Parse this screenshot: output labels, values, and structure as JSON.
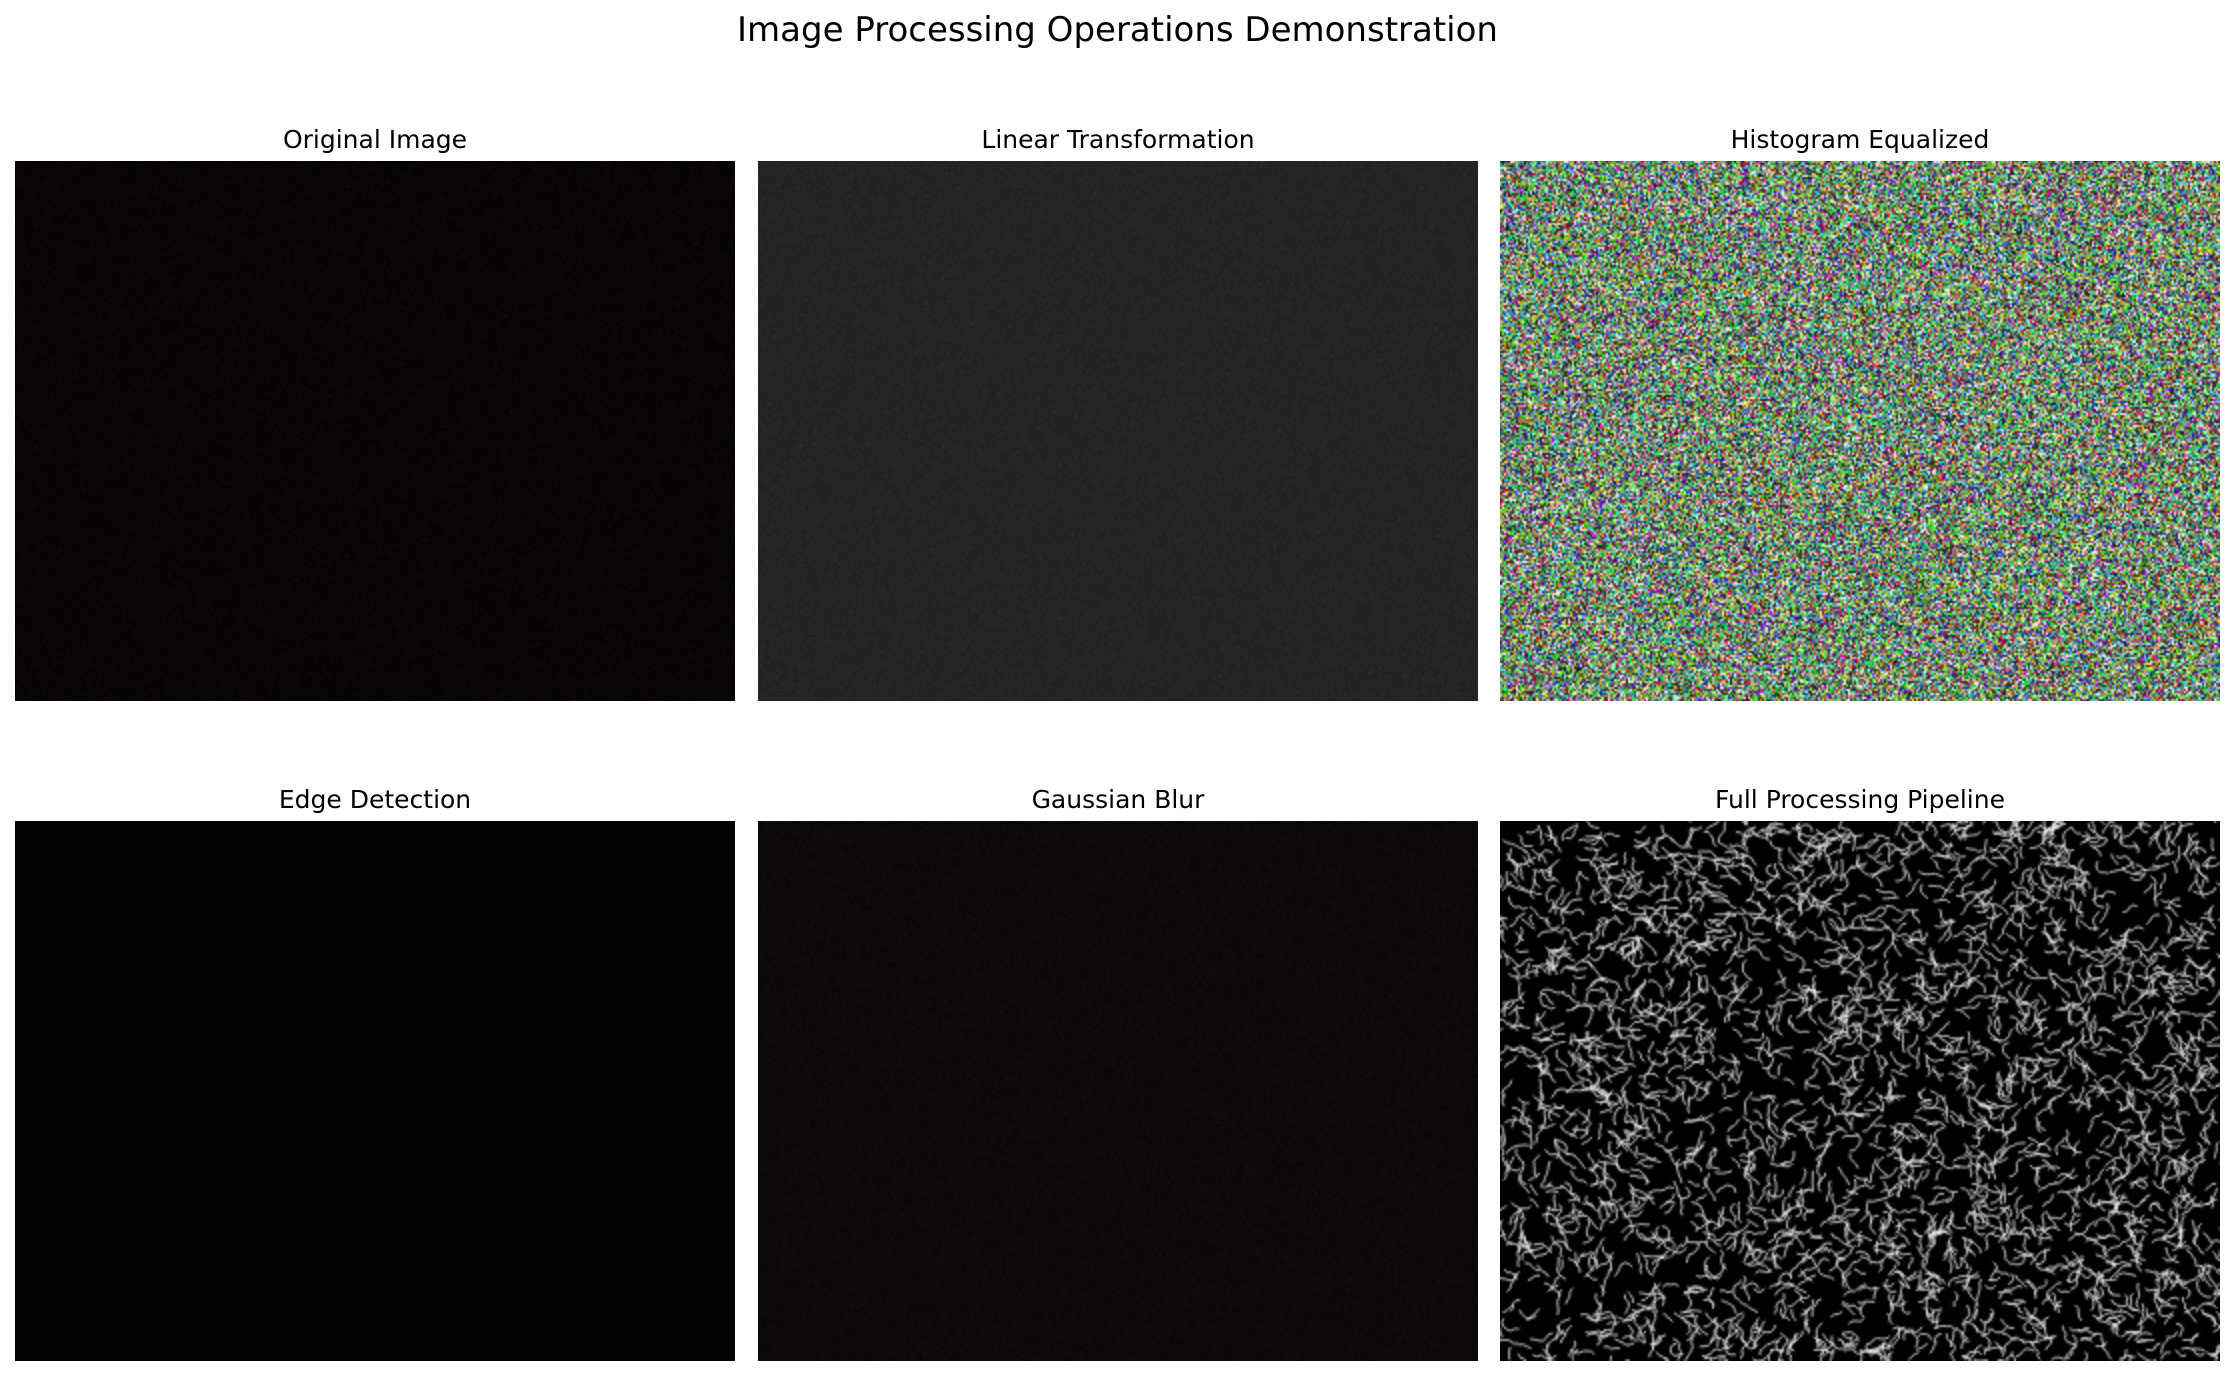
{
  "figure": {
    "title": "Image Processing Operations Demonstration"
  },
  "panels": [
    {
      "title": "Original Image",
      "render": "dark-noise",
      "base_color": "#080506"
    },
    {
      "title": "Linear Transformation",
      "render": "flat-noise",
      "base_color": "#252424"
    },
    {
      "title": "Histogram Equalized",
      "render": "color-noise",
      "base_color": "#7a9a70"
    },
    {
      "title": "Edge Detection",
      "render": "solid",
      "base_color": "#020202"
    },
    {
      "title": "Gaussian Blur",
      "render": "dark-noise",
      "base_color": "#0b0909"
    },
    {
      "title": "Full Processing Pipeline",
      "render": "edge-texture",
      "base_color": "#000000"
    }
  ]
}
